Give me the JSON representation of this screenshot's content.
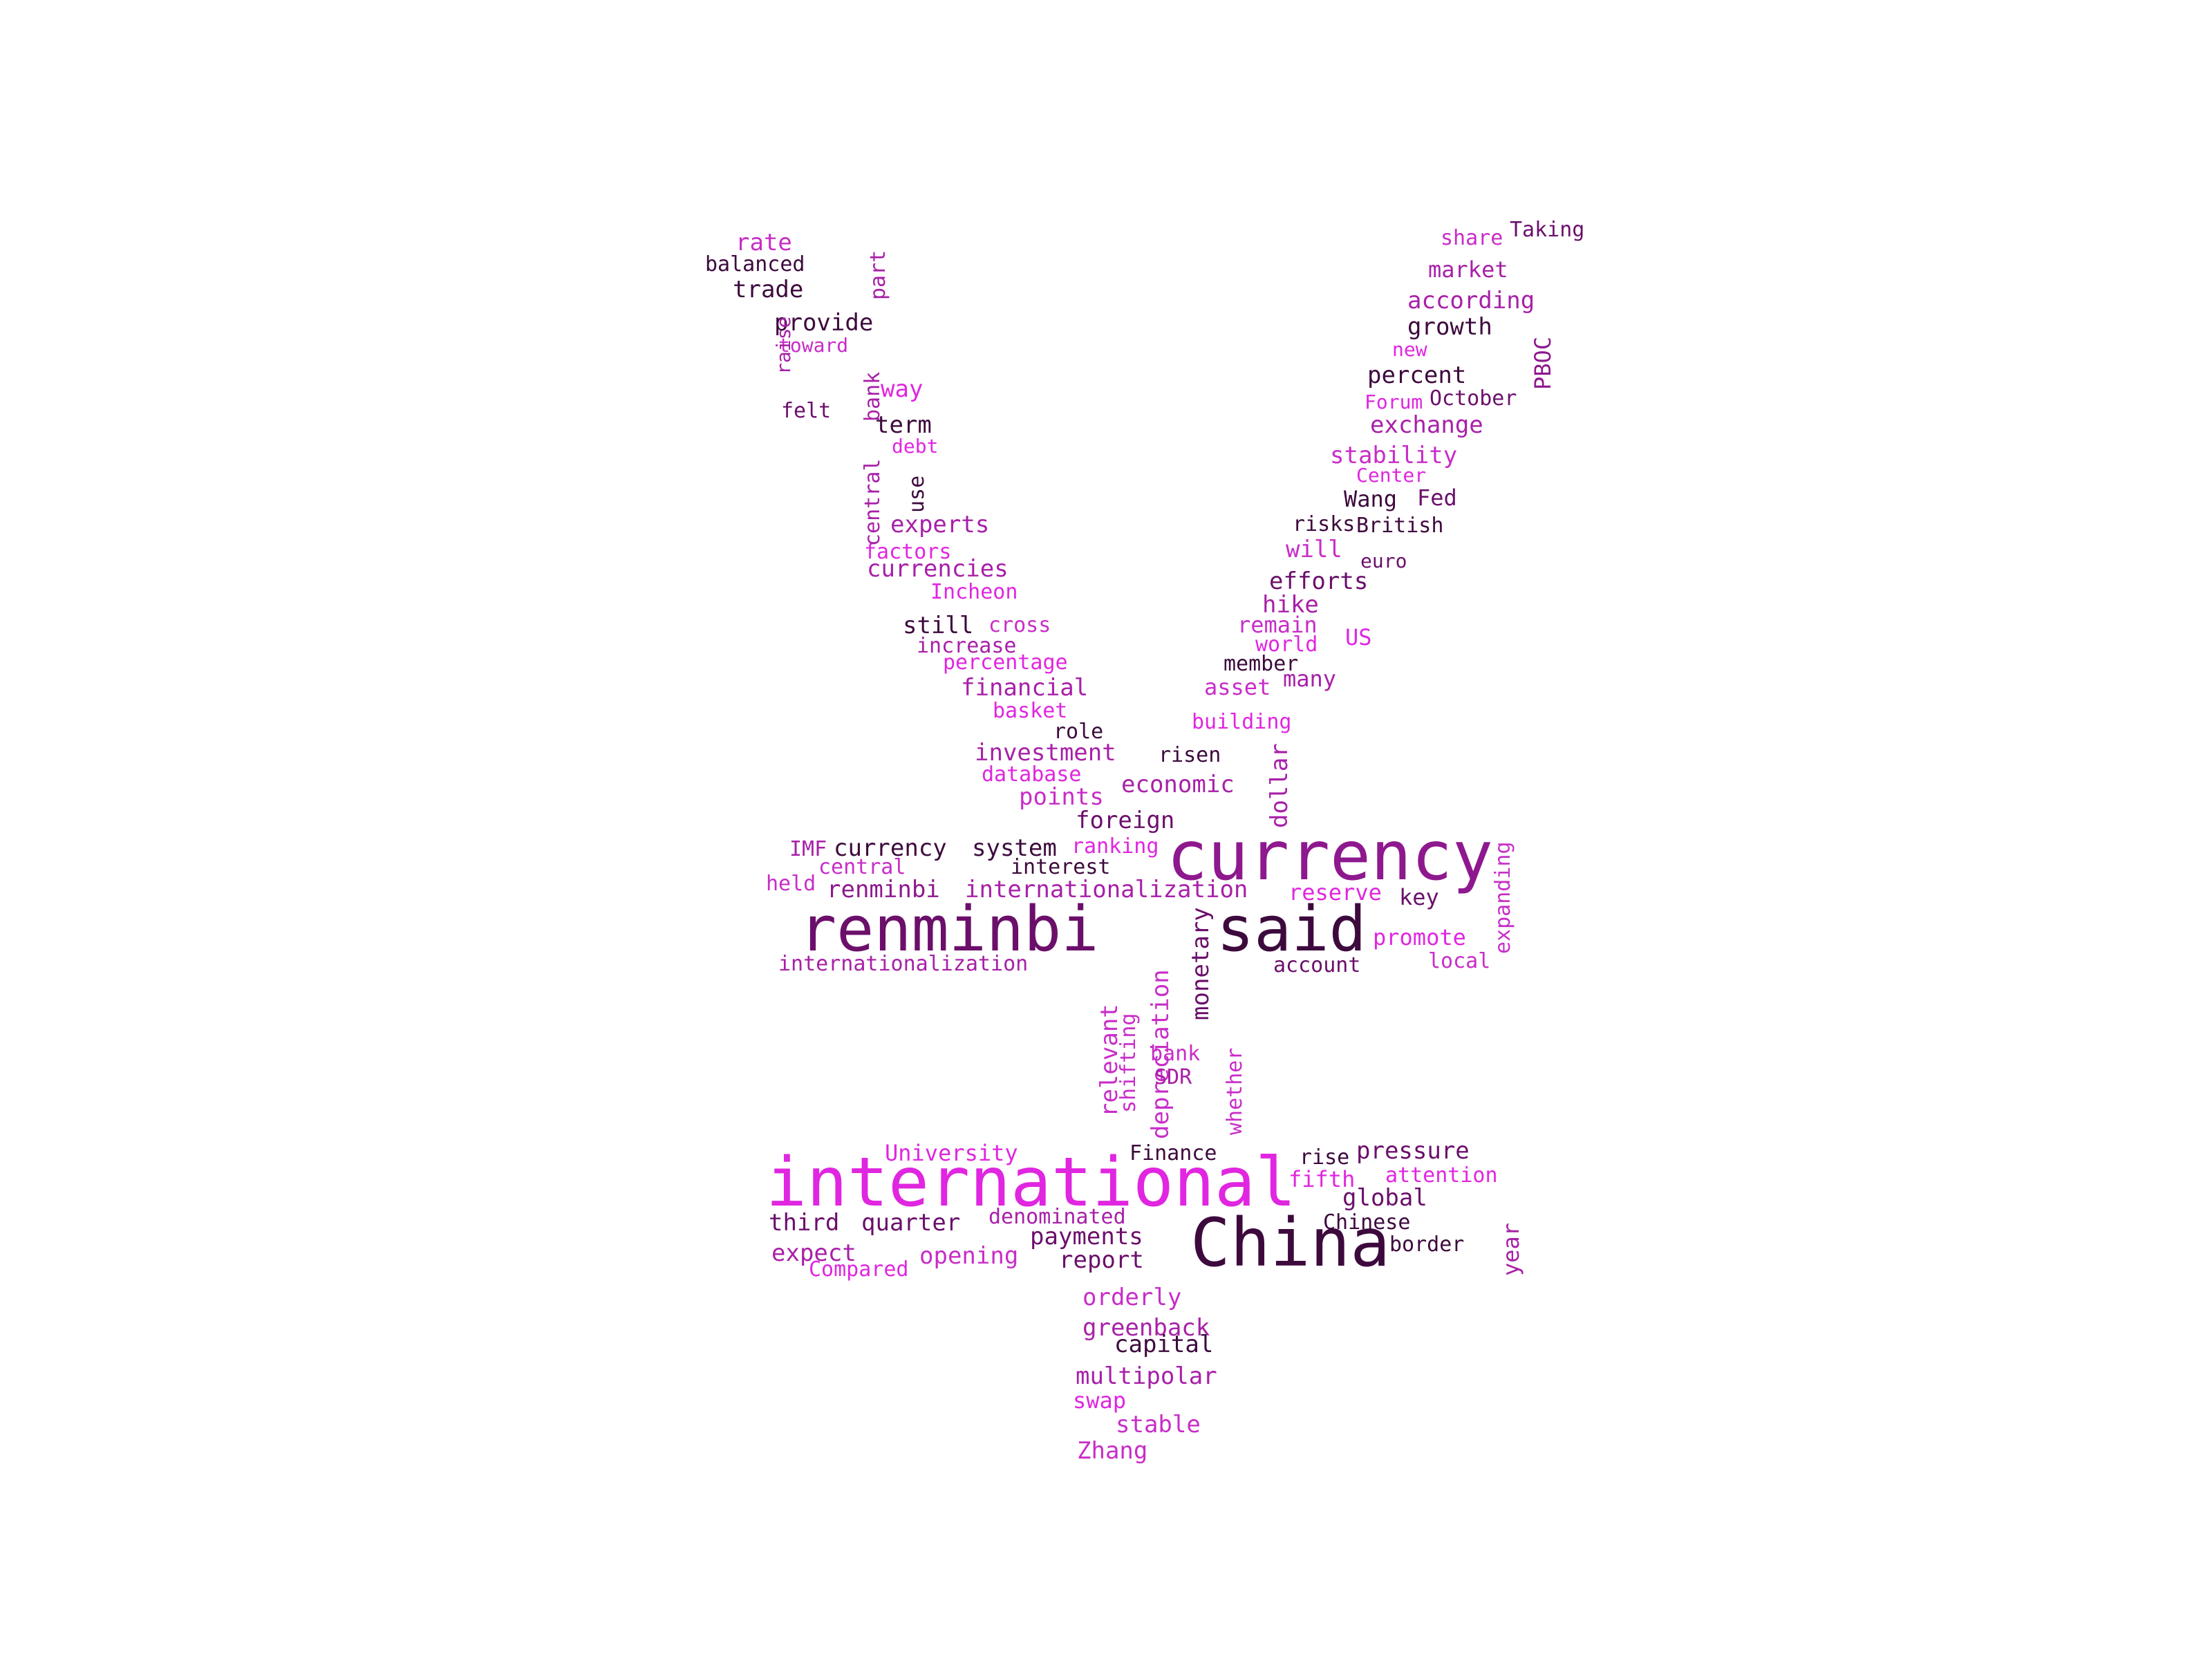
{
  "palette": {
    "background": "#ffffff",
    "darkest": "#3d0a3d",
    "dark": "#6b0f6b",
    "purple": "#8e188e",
    "medium": "#a820a8",
    "magenta": "#c82dc8",
    "bright": "#e026e0"
  },
  "words": [
    {
      "text": "international",
      "color": "#e026e0"
    },
    {
      "text": "China",
      "color": "#3d0a3d"
    },
    {
      "text": "currency",
      "color": "#8e188e"
    },
    {
      "text": "renminbi",
      "color": "#6b0f6b"
    },
    {
      "text": "said",
      "color": "#3d0a3d"
    },
    {
      "text": "internationalization",
      "color": "#a820a8"
    },
    {
      "text": "internationalization",
      "color": "#a820a8"
    },
    {
      "text": "currency",
      "color": "#3d0a3d"
    },
    {
      "text": "system",
      "color": "#3d0a3d"
    },
    {
      "text": "renminbi",
      "color": "#8e188e"
    },
    {
      "text": "reserve",
      "color": "#e026e0"
    },
    {
      "text": "key",
      "color": "#6b0f6b"
    },
    {
      "text": "promote",
      "color": "#e026e0"
    },
    {
      "text": "account",
      "color": "#6b0f6b"
    },
    {
      "text": "local",
      "color": "#c82dc8"
    },
    {
      "text": "expanding",
      "color": "#c82dc8"
    },
    {
      "text": "IMF",
      "color": "#a820a8"
    },
    {
      "text": "central",
      "color": "#c82dc8"
    },
    {
      "text": "held",
      "color": "#c82dc8"
    },
    {
      "text": "ranking",
      "color": "#e026e0"
    },
    {
      "text": "interest",
      "color": "#3d0a3d"
    },
    {
      "text": "foreign",
      "color": "#6b0f6b"
    },
    {
      "text": "economic",
      "color": "#a820a8"
    },
    {
      "text": "points",
      "color": "#c82dc8"
    },
    {
      "text": "database",
      "color": "#e026e0"
    },
    {
      "text": "investment",
      "color": "#a820a8"
    },
    {
      "text": "risen",
      "color": "#3d0a3d"
    },
    {
      "text": "role",
      "color": "#3d0a3d"
    },
    {
      "text": "building",
      "color": "#e026e0"
    },
    {
      "text": "basket",
      "color": "#e026e0"
    },
    {
      "text": "financial",
      "color": "#a820a8"
    },
    {
      "text": "asset",
      "color": "#c82dc8"
    },
    {
      "text": "many",
      "color": "#a820a8"
    },
    {
      "text": "percentage",
      "color": "#e026e0"
    },
    {
      "text": "member",
      "color": "#3d0a3d"
    },
    {
      "text": "increase",
      "color": "#a820a8"
    },
    {
      "text": "world",
      "color": "#e026e0"
    },
    {
      "text": "still",
      "color": "#3d0a3d"
    },
    {
      "text": "cross",
      "color": "#c82dc8"
    },
    {
      "text": "remain",
      "color": "#c82dc8"
    },
    {
      "text": "US",
      "color": "#e026e0"
    },
    {
      "text": "hike",
      "color": "#a820a8"
    },
    {
      "text": "Incheon",
      "color": "#e026e0"
    },
    {
      "text": "efforts",
      "color": "#6b0f6b"
    },
    {
      "text": "currencies",
      "color": "#a820a8"
    },
    {
      "text": "factors",
      "color": "#e026e0"
    },
    {
      "text": "will",
      "color": "#c82dc8"
    },
    {
      "text": "euro",
      "color": "#6b0f6b"
    },
    {
      "text": "experts",
      "color": "#a820a8"
    },
    {
      "text": "risks",
      "color": "#3d0a3d"
    },
    {
      "text": "British",
      "color": "#3d0a3d"
    },
    {
      "text": "Wang",
      "color": "#3d0a3d"
    },
    {
      "text": "Fed",
      "color": "#6b0f6b"
    },
    {
      "text": "Center",
      "color": "#e026e0"
    },
    {
      "text": "stability",
      "color": "#c82dc8"
    },
    {
      "text": "debt",
      "color": "#e026e0"
    },
    {
      "text": "term",
      "color": "#3d0a3d"
    },
    {
      "text": "exchange",
      "color": "#a820a8"
    },
    {
      "text": "Forum",
      "color": "#e026e0"
    },
    {
      "text": "October",
      "color": "#6b0f6b"
    },
    {
      "text": "felt",
      "color": "#6b0f6b"
    },
    {
      "text": "way",
      "color": "#e026e0"
    },
    {
      "text": "percent",
      "color": "#3d0a3d"
    },
    {
      "text": "new",
      "color": "#e026e0"
    },
    {
      "text": "toward",
      "color": "#c82dc8"
    },
    {
      "text": "provide",
      "color": "#3d0a3d"
    },
    {
      "text": "growth",
      "color": "#3d0a3d"
    },
    {
      "text": "according",
      "color": "#a820a8"
    },
    {
      "text": "trade",
      "color": "#3d0a3d"
    },
    {
      "text": "market",
      "color": "#a820a8"
    },
    {
      "text": "balanced",
      "color": "#3d0a3d"
    },
    {
      "text": "rate",
      "color": "#c82dc8"
    },
    {
      "text": "share",
      "color": "#c82dc8"
    },
    {
      "text": "Taking",
      "color": "#6b0f6b"
    },
    {
      "text": "part",
      "color": "#a820a8"
    },
    {
      "text": "raise",
      "color": "#a820a8"
    },
    {
      "text": "bank",
      "color": "#a820a8"
    },
    {
      "text": "central",
      "color": "#a820a8"
    },
    {
      "text": "use",
      "color": "#3d0a3d"
    },
    {
      "text": "PBOC",
      "color": "#8e188e"
    },
    {
      "text": "dollar",
      "color": "#a820a8"
    },
    {
      "text": "monetary",
      "color": "#6b0f6b"
    },
    {
      "text": "depreciation",
      "color": "#c82dc8"
    },
    {
      "text": "relevant",
      "color": "#c82dc8"
    },
    {
      "text": "shifting",
      "color": "#c82dc8"
    },
    {
      "text": "whether",
      "color": "#c82dc8"
    },
    {
      "text": "bank",
      "color": "#c82dc8"
    },
    {
      "text": "SDR",
      "color": "#a820a8"
    },
    {
      "text": "year",
      "color": "#a820a8"
    },
    {
      "text": "University",
      "color": "#e026e0"
    },
    {
      "text": "Finance",
      "color": "#3d0a3d"
    },
    {
      "text": "rise",
      "color": "#3d0a3d"
    },
    {
      "text": "pressure",
      "color": "#6b0f6b"
    },
    {
      "text": "fifth",
      "color": "#e026e0"
    },
    {
      "text": "attention",
      "color": "#e026e0"
    },
    {
      "text": "global",
      "color": "#6b0f6b"
    },
    {
      "text": "third",
      "color": "#6b0f6b"
    },
    {
      "text": "quarter",
      "color": "#6b0f6b"
    },
    {
      "text": "denominated",
      "color": "#a820a8"
    },
    {
      "text": "Chinese",
      "color": "#3d0a3d"
    },
    {
      "text": "payments",
      "color": "#6b0f6b"
    },
    {
      "text": "border",
      "color": "#3d0a3d"
    },
    {
      "text": "expect",
      "color": "#a820a8"
    },
    {
      "text": "opening",
      "color": "#c82dc8"
    },
    {
      "text": "report",
      "color": "#6b0f6b"
    },
    {
      "text": "Compared",
      "color": "#e026e0"
    },
    {
      "text": "orderly",
      "color": "#c82dc8"
    },
    {
      "text": "greenback",
      "color": "#a820a8"
    },
    {
      "text": "capital",
      "color": "#3d0a3d"
    },
    {
      "text": "multipolar",
      "color": "#a820a8"
    },
    {
      "text": "swap",
      "color": "#e026e0"
    },
    {
      "text": "stable",
      "color": "#c82dc8"
    },
    {
      "text": "Zhang",
      "color": "#c82dc8"
    }
  ]
}
